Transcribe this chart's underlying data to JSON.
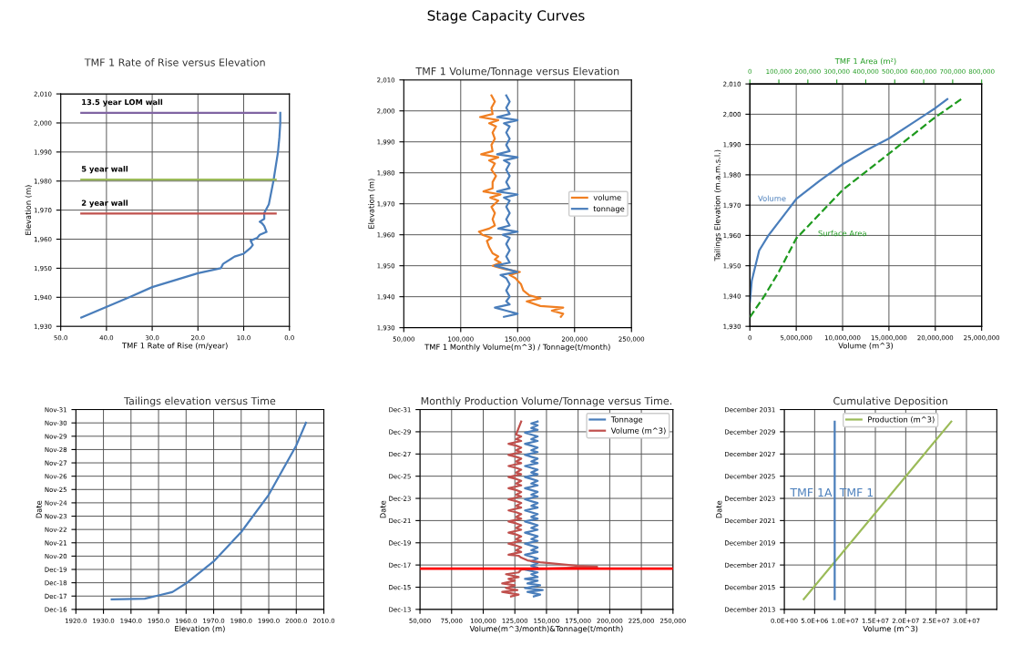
{
  "chart_data": [
    {
      "type": "other",
      "title": "Stage Capacity Curves"
    },
    {
      "type": "line",
      "title": "TMF 1 Rate of Rise versus Elevation",
      "xlabel": "TMF 1 Rate of Rise (m/year)",
      "ylabel": "Elevation (m)",
      "xlim": [
        50,
        0
      ],
      "xticks": [
        {
          "value": 50,
          "label": "50.0"
        },
        {
          "value": 40,
          "label": "40.0"
        },
        {
          "value": 30,
          "label": "30.0"
        },
        {
          "value": 20,
          "label": "20.0"
        },
        {
          "value": 10,
          "label": "10.0"
        },
        {
          "value": 0,
          "label": "0.0"
        }
      ],
      "ylim": [
        1930,
        2010
      ],
      "yticks": [
        {
          "value": 1930,
          "label": "1,930"
        },
        {
          "value": 1940,
          "label": "1,940"
        },
        {
          "value": 1950,
          "label": "1,950"
        },
        {
          "value": 1960,
          "label": "1,960"
        },
        {
          "value": 1970,
          "label": "1,970"
        },
        {
          "value": 1980,
          "label": "1,980"
        },
        {
          "value": 1990,
          "label": "1,990"
        },
        {
          "value": 2000,
          "label": "2,000"
        },
        {
          "value": 2010,
          "label": "2,010"
        }
      ],
      "grid": true,
      "legend": false,
      "series": [
        {
          "color": "#4a7ebb",
          "x": [
            45.5,
            35,
            30,
            20,
            15,
            14.5,
            12,
            10,
            8.5,
            8,
            8.5,
            7,
            6.5,
            5,
            5.5,
            6,
            6.5,
            5.5,
            5.5,
            4.5,
            4,
            3.5,
            3,
            2.5,
            2.2,
            2,
            2
          ],
          "values": [
            1933,
            1940,
            1943.5,
            1948.3,
            1950,
            1951.5,
            1954,
            1955,
            1957,
            1958,
            1959.5,
            1960.5,
            1961.5,
            1962.5,
            1964.5,
            1965.5,
            1966,
            1967,
            1969,
            1972,
            1976,
            1980,
            1985,
            1990,
            1995,
            2000,
            2003.5
          ]
        },
        {
          "name": "13.5 year LOM wall",
          "color": "#8064a2",
          "x": [
            45.5,
            3
          ],
          "values": [
            2003.5,
            2003.5
          ]
        },
        {
          "name": "5 year wall",
          "color": "#9bbb59",
          "x": [
            45.5,
            3
          ],
          "values": [
            1980.5,
            1980.5
          ]
        },
        {
          "name": "2 year wall",
          "color": "#c0504d",
          "x": [
            45.5,
            3
          ],
          "values": [
            1968.8,
            1968.8
          ]
        }
      ]
    },
    {
      "type": "line",
      "title": "TMF 1 Volume/Tonnage versus Elevation",
      "xlabel": "TMF 1 Monthly Volume(m^3) / Tonnage(t/month)",
      "ylabel": "Elevation (m)",
      "xlim": [
        50000,
        250000
      ],
      "xticks": [
        {
          "value": 50000,
          "label": "50,000"
        },
        {
          "value": 100000,
          "label": "100,000"
        },
        {
          "value": 150000,
          "label": "150,000"
        },
        {
          "value": 200000,
          "label": "200,000"
        },
        {
          "value": 250000,
          "label": "250,000"
        }
      ],
      "ylim": [
        1930,
        2010
      ],
      "yticks": [
        {
          "value": 1930,
          "label": "1,930"
        },
        {
          "value": 1940,
          "label": "1,940"
        },
        {
          "value": 1950,
          "label": "1,950"
        },
        {
          "value": 1960,
          "label": "1,960"
        },
        {
          "value": 1970,
          "label": "1,970"
        },
        {
          "value": 1980,
          "label": "1,980"
        },
        {
          "value": 1990,
          "label": "1,990"
        },
        {
          "value": 2000,
          "label": "2,000"
        },
        {
          "value": 2010,
          "label": "2,010"
        }
      ],
      "grid": true,
      "legend": "right",
      "series": [
        {
          "name": "volume",
          "color": "#f07f22",
          "x": [
            188000,
            190000,
            180000,
            190000,
            170000,
            158000,
            170000,
            160000,
            155000,
            153000,
            148000,
            143000,
            152000,
            138000,
            128000,
            135000,
            130000,
            133000,
            128000,
            125000,
            123000,
            127000,
            119000,
            116000,
            125000,
            130000,
            128000,
            130000,
            127000,
            133000,
            126000,
            135000,
            120000,
            128000,
            128000,
            131000,
            127000,
            130000,
            125000,
            133000,
            118000,
            128000,
            127000,
            130000,
            128000,
            131000,
            125000,
            133000,
            117000,
            128000,
            127000,
            130000,
            127000
          ],
          "values": [
            1933.5,
            1934.5,
            1935.5,
            1936.5,
            1937,
            1938.5,
            1939.5,
            1940.5,
            1942,
            1944,
            1946,
            1947,
            1948,
            1949,
            1950,
            1951,
            1952,
            1953,
            1954,
            1956,
            1958,
            1959,
            1960,
            1961,
            1962,
            1963,
            1965,
            1967,
            1969,
            1971,
            1972,
            1973,
            1974,
            1975,
            1977,
            1979,
            1981,
            1983,
            1984,
            1985,
            1986,
            1987,
            1989,
            1991,
            1993,
            1995,
            1996,
            1997,
            1998,
            1999,
            2001,
            2003,
            2005
          ]
        },
        {
          "name": "tonnage",
          "color": "#4a7ebb",
          "x": [
            138000,
            150000,
            140000,
            130000,
            143000,
            140000,
            143000,
            140000,
            143000,
            140000,
            135000,
            150000,
            140000,
            130000,
            143000,
            140000,
            143000,
            140000,
            143000,
            137000,
            150000,
            133000,
            143000,
            140000,
            143000,
            140000,
            143000,
            138000,
            150000,
            132000,
            143000,
            140000,
            143000,
            140000,
            143000,
            138000,
            150000,
            132000,
            143000,
            140000,
            143000,
            140000,
            143000,
            138000,
            150000,
            132000,
            143000,
            140000,
            143000,
            140000
          ],
          "values": [
            1933.5,
            1934.5,
            1935.5,
            1936.5,
            1937.5,
            1938.5,
            1940,
            1942,
            1944,
            1946,
            1947,
            1948,
            1949,
            1950,
            1951,
            1953,
            1955,
            1957,
            1959,
            1960,
            1961,
            1962,
            1963,
            1965,
            1967,
            1969,
            1971,
            1972,
            1973,
            1974,
            1975,
            1977,
            1979,
            1981,
            1983,
            1984,
            1985,
            1986,
            1987,
            1989,
            1991,
            1993,
            1995,
            1996,
            1997,
            1998,
            1999,
            2001,
            2003,
            2005
          ]
        }
      ]
    },
    {
      "type": "line",
      "xlabel": "Volume (m^3)",
      "x2label": "TMF 1 Area (m²)",
      "ylabel": "Tailings Elevation (m.a.m.s.l.)",
      "xlim": [
        0,
        25000000
      ],
      "xticks": [
        0,
        {
          "value": 5000000,
          "label": "5,000,000"
        },
        {
          "value": 10000000,
          "label": "10,000,000"
        },
        {
          "value": 15000000,
          "label": "15,000,000"
        },
        {
          "value": 20000000,
          "label": "20,000,000"
        },
        {
          "value": 25000000,
          "label": "25,000,000"
        }
      ],
      "x2lim": [
        0,
        800000
      ],
      "x2ticks": [
        0,
        {
          "value": 100000,
          "label": "100,000"
        },
        {
          "value": 200000,
          "label": "200,000"
        },
        {
          "value": 300000,
          "label": "300,000"
        },
        {
          "value": 400000,
          "label": "400,000"
        },
        {
          "value": 500000,
          "label": "500,000"
        },
        {
          "value": 600000,
          "label": "600,000"
        },
        {
          "value": 700000,
          "label": "700,000"
        },
        {
          "value": 800000,
          "label": "800,000"
        }
      ],
      "ylim": [
        1930,
        2010
      ],
      "yticks": [
        {
          "value": 1930,
          "label": "1,930"
        },
        {
          "value": 1940,
          "label": "1,940"
        },
        {
          "value": 1950,
          "label": "1,950"
        },
        {
          "value": 1960,
          "label": "1,960"
        },
        {
          "value": 1970,
          "label": "1,970"
        },
        {
          "value": 1980,
          "label": "1,980"
        },
        {
          "value": 1990,
          "label": "1,990"
        },
        {
          "value": 2000,
          "label": "2,000"
        },
        {
          "value": 2010,
          "label": "2,010"
        }
      ],
      "grid": true,
      "legend": false,
      "series": [
        {
          "name": "Volume",
          "color": "#4a7ebb",
          "x": [
            0,
            200000,
            1000000,
            2000000,
            3000000,
            4000000,
            5000000,
            7500000,
            10000000,
            12500000,
            15000000,
            17500000,
            20000000,
            21300000
          ],
          "values": [
            1938,
            1945,
            1955,
            1960,
            1964,
            1968,
            1972,
            1978,
            1983.5,
            1988,
            1992,
            1997,
            2002,
            2005
          ]
        },
        {
          "name": "Surface Area",
          "color": "#1e9a1e",
          "axis": "x2",
          "line_style": "dashed",
          "x": [
            0,
            50000,
            100000,
            160000,
            200000,
            320000,
            480000,
            640000,
            730000
          ],
          "values": [
            1933,
            1940,
            1948,
            1959,
            1963,
            1975,
            1987,
            1999,
            2005
          ]
        }
      ]
    },
    {
      "type": "line",
      "title": "Tailings elevation versus Time",
      "xlabel": "Elevation (m)",
      "ylabel": "Date",
      "xlim": [
        1920,
        2010
      ],
      "xticks": [
        {
          "value": 1920,
          "label": "1920.0"
        },
        {
          "value": 1930,
          "label": "1930.0"
        },
        {
          "value": 1940,
          "label": "1940.0"
        },
        {
          "value": 1950,
          "label": "1950.0"
        },
        {
          "value": 1960,
          "label": "1960.0"
        },
        {
          "value": 1970,
          "label": "1970.0"
        },
        {
          "value": 1980,
          "label": "1980.0"
        },
        {
          "value": 1990,
          "label": "1990.0"
        },
        {
          "value": 2000,
          "label": "2000.0"
        },
        {
          "value": 2010,
          "label": "2010.0"
        }
      ],
      "ylim": [
        "2016-12-01",
        "2031-11-28"
      ],
      "yticks": [
        {
          "value": "2016-12-01",
          "label": "Dec-16"
        },
        {
          "value": "2017-12-01",
          "label": "Dec-17"
        },
        {
          "value": "2018-12-01",
          "label": "Dec-18"
        },
        {
          "value": "2019-12-01",
          "label": "Dec-19"
        },
        {
          "value": "2020-11-30",
          "label": "Nov-20"
        },
        {
          "value": "2021-11-30",
          "label": "Nov-21"
        },
        {
          "value": "2022-11-30",
          "label": "Nov-22"
        },
        {
          "value": "2023-11-30",
          "label": "Nov-23"
        },
        {
          "value": "2024-11-29",
          "label": "Nov-24"
        },
        {
          "value": "2025-11-29",
          "label": "Nov-25"
        },
        {
          "value": "2026-11-29",
          "label": "Nov-26"
        },
        {
          "value": "2027-11-29",
          "label": "Nov-27"
        },
        {
          "value": "2028-11-28",
          "label": "Nov-28"
        },
        {
          "value": "2029-11-28",
          "label": "Nov-29"
        },
        {
          "value": "2030-11-28",
          "label": "Nov-30"
        },
        {
          "value": "2031-11-28",
          "label": "Nov-31"
        }
      ],
      "grid": true,
      "legend": false,
      "orientation": "horizontal",
      "series": [
        {
          "color": "#4a7ebb",
          "values": [
            1933,
            1945,
            1950,
            1955,
            1960,
            1970,
            1980,
            1990,
            2000,
            2003.5
          ],
          "x": [
            "2017-09-01",
            "2017-09-20",
            "2017-12-20",
            "2018-03-20",
            "2018-11-14",
            "2020-07-08",
            "2022-09-20",
            "2025-07-08",
            "2029-03-20",
            "2030-12-01"
          ]
        }
      ]
    },
    {
      "type": "line",
      "title": "Monthly Production Volume/Tonnage versus Time.",
      "xlabel": "Volume(m^3/month)&Tonnage(t/month)",
      "ylabel": "Date",
      "xlim": [
        50000,
        250000
      ],
      "xticks": [
        {
          "value": 50000,
          "label": "50,000"
        },
        {
          "value": 75000,
          "label": "75,000"
        },
        {
          "value": 100000,
          "label": "100,000"
        },
        {
          "value": 125000,
          "label": "125,000"
        },
        {
          "value": 150000,
          "label": "150,000"
        },
        {
          "value": 175000,
          "label": "175,000"
        },
        {
          "value": 200000,
          "label": "200,000"
        },
        {
          "value": 225000,
          "label": "225,000"
        },
        {
          "value": 250000,
          "label": "250,000"
        }
      ],
      "ylim": [
        "2013-12",
        "2031-12"
      ],
      "yticks": [
        {
          "value": "2013-12",
          "label": "Dec-13"
        },
        {
          "value": "2015-12",
          "label": "Dec-15"
        },
        {
          "value": "2017-12",
          "label": "Dec-17"
        },
        {
          "value": "2019-12",
          "label": "Dec-19"
        },
        {
          "value": "2021-12",
          "label": "Dec-21"
        },
        {
          "value": "2023-12",
          "label": "Dec-23"
        },
        {
          "value": "2025-12",
          "label": "Dec-25"
        },
        {
          "value": "2027-12",
          "label": "Dec-27"
        },
        {
          "value": "2029-12",
          "label": "Dec-29"
        },
        {
          "value": "2031-12",
          "label": "Dec-31"
        }
      ],
      "grid": true,
      "legend": "top right",
      "orientation": "horizontal",
      "ref_lines": [
        {
          "axis": "y",
          "value": "2017-08",
          "color": "#ff0000"
        }
      ],
      "series": [
        {
          "name": "Tonnage",
          "color": "#4a7ebb",
          "values": [
            140000,
            145000,
            135000,
            147000,
            133000,
            145000,
            135000,
            143000,
            133000,
            143000,
            138000,
            143000,
            133000,
            143000,
            138000,
            143000,
            138000,
            143000,
            138000,
            133000,
            143000,
            138000,
            143000,
            138000,
            133000,
            143000,
            138000,
            143000,
            138000,
            133000,
            143000,
            138000,
            143000,
            138000,
            133000,
            143000,
            138000,
            143000,
            138000,
            133000,
            143000,
            138000,
            143000,
            138000,
            133000,
            143000,
            138000,
            143000,
            138000,
            133000,
            143000,
            138000,
            143000,
            138000,
            133000,
            143000,
            138000,
            143000,
            138000,
            133000,
            143000,
            138000,
            143000,
            138000,
            133000,
            143000,
            138000,
            143000,
            138000,
            133000,
            143000,
            138000,
            143000,
            138000,
            133000,
            143000,
            138000,
            143000,
            138000,
            143000
          ],
          "x": [
            "2015-02",
            "2015-04",
            "2015-07",
            "2015-09",
            "2015-11",
            "2016-02",
            "2016-04",
            "2016-07",
            "2016-09",
            "2016-11",
            "2017-02",
            "2017-04",
            "2017-07",
            "2017-09",
            "2017-11",
            "2018-02",
            "2018-04",
            "2018-07",
            "2018-09",
            "2018-11",
            "2019-02",
            "2019-04",
            "2019-07",
            "2019-09",
            "2019-11",
            "2020-02",
            "2020-04",
            "2020-07",
            "2020-09",
            "2020-11",
            "2021-02",
            "2021-04",
            "2021-07",
            "2021-09",
            "2021-11",
            "2022-02",
            "2022-04",
            "2022-07",
            "2022-09",
            "2022-11",
            "2023-02",
            "2023-04",
            "2023-07",
            "2023-09",
            "2023-11",
            "2024-02",
            "2024-04",
            "2024-07",
            "2024-09",
            "2024-11",
            "2025-02",
            "2025-04",
            "2025-07",
            "2025-09",
            "2025-11",
            "2026-02",
            "2026-04",
            "2026-07",
            "2026-09",
            "2026-11",
            "2027-02",
            "2027-04",
            "2027-07",
            "2027-09",
            "2027-11",
            "2028-02",
            "2028-04",
            "2028-07",
            "2028-09",
            "2028-11",
            "2029-02",
            "2029-04",
            "2029-07",
            "2029-09",
            "2029-11",
            "2030-02",
            "2030-04",
            "2030-07",
            "2030-09",
            "2030-11"
          ]
        },
        {
          "name": "Volume (m^3)",
          "color": "#c0504d",
          "values": [
            122000,
            128000,
            115000,
            127000,
            118000,
            125000,
            115000,
            125000,
            120000,
            128000,
            118000,
            128000,
            130000,
            190000,
            175000,
            160000,
            145000,
            135000,
            130000,
            128000,
            120000,
            130000,
            126000,
            130000,
            126000,
            120000,
            130000,
            126000,
            130000,
            126000,
            120000,
            130000,
            126000,
            130000,
            126000,
            120000,
            130000,
            126000,
            130000,
            126000,
            120000,
            130000,
            126000,
            130000,
            126000,
            120000,
            130000,
            126000,
            130000,
            126000,
            120000,
            130000,
            126000,
            130000,
            126000,
            120000,
            130000,
            126000,
            130000,
            126000,
            120000,
            130000,
            126000,
            130000,
            126000,
            120000,
            130000,
            126000,
            130000,
            126000,
            120000,
            130000,
            126000,
            130000,
            126000,
            130000
          ],
          "x": [
            "2015-02",
            "2015-04",
            "2015-07",
            "2015-09",
            "2015-11",
            "2016-02",
            "2016-04",
            "2016-07",
            "2016-09",
            "2016-11",
            "2017-02",
            "2017-04",
            "2017-07",
            "2017-10",
            "2017-11",
            "2018-01",
            "2018-03",
            "2018-05",
            "2018-08",
            "2018-10",
            "2018-11",
            "2019-02",
            "2019-04",
            "2019-07",
            "2019-09",
            "2019-11",
            "2020-02",
            "2020-04",
            "2020-07",
            "2020-09",
            "2020-11",
            "2021-02",
            "2021-04",
            "2021-07",
            "2021-09",
            "2021-11",
            "2022-02",
            "2022-04",
            "2022-07",
            "2022-09",
            "2022-11",
            "2023-02",
            "2023-04",
            "2023-07",
            "2023-09",
            "2023-11",
            "2024-02",
            "2024-04",
            "2024-07",
            "2024-09",
            "2024-11",
            "2025-02",
            "2025-04",
            "2025-07",
            "2025-09",
            "2025-11",
            "2026-02",
            "2026-04",
            "2026-07",
            "2026-09",
            "2026-11",
            "2027-02",
            "2027-04",
            "2027-07",
            "2027-09",
            "2027-11",
            "2028-02",
            "2028-04",
            "2028-07",
            "2028-09",
            "2028-11",
            "2029-02",
            "2029-04",
            "2029-07",
            "2029-09",
            "2030-11"
          ]
        }
      ]
    },
    {
      "type": "line",
      "title": "Cumulative Deposition",
      "xlabel": "Volume (m^3)",
      "ylabel": "Date",
      "xlim": [
        0,
        35000000
      ],
      "xticks": [
        {
          "value": 0,
          "label": "0.0E+00"
        },
        {
          "value": 5000000,
          "label": "5.0E+06"
        },
        {
          "value": 10000000,
          "label": "1.0E+07"
        },
        {
          "value": 15000000,
          "label": "1.5E+07"
        },
        {
          "value": 20000000,
          "label": "2.0E+07"
        },
        {
          "value": 25000000,
          "label": "2.5E+07"
        },
        {
          "value": 30000000,
          "label": "3.0E+07"
        }
      ],
      "ylim": [
        "2013-12",
        "2031-12"
      ],
      "yticks": [
        {
          "value": "2013-12",
          "label": "December 2013"
        },
        {
          "value": "2015-12",
          "label": "December 2015"
        },
        {
          "value": "2017-12",
          "label": "December 2017"
        },
        {
          "value": "2019-12",
          "label": "December 2019"
        },
        {
          "value": "2021-12",
          "label": "December 2021"
        },
        {
          "value": "2023-12",
          "label": "December 2023"
        },
        {
          "value": "2025-12",
          "label": "December 2025"
        },
        {
          "value": "2027-12",
          "label": "December 2027"
        },
        {
          "value": "2029-12",
          "label": "December 2029"
        },
        {
          "value": "2031-12",
          "label": "December 2031"
        }
      ],
      "grid": true,
      "legend": "top",
      "orientation": "horizontal",
      "annotations": [
        "TMF 1A",
        "TMF 1"
      ],
      "series": [
        {
          "name": "Production (m^3)",
          "color": "#9bbb59",
          "values": [
            3200000,
            27500000
          ],
          "x": [
            "2014-11",
            "2030-11"
          ]
        },
        {
          "color": "#4a7ebb",
          "values": [
            8300000,
            8300000
          ],
          "x": [
            "2014-11",
            "2030-11"
          ]
        }
      ]
    }
  ]
}
